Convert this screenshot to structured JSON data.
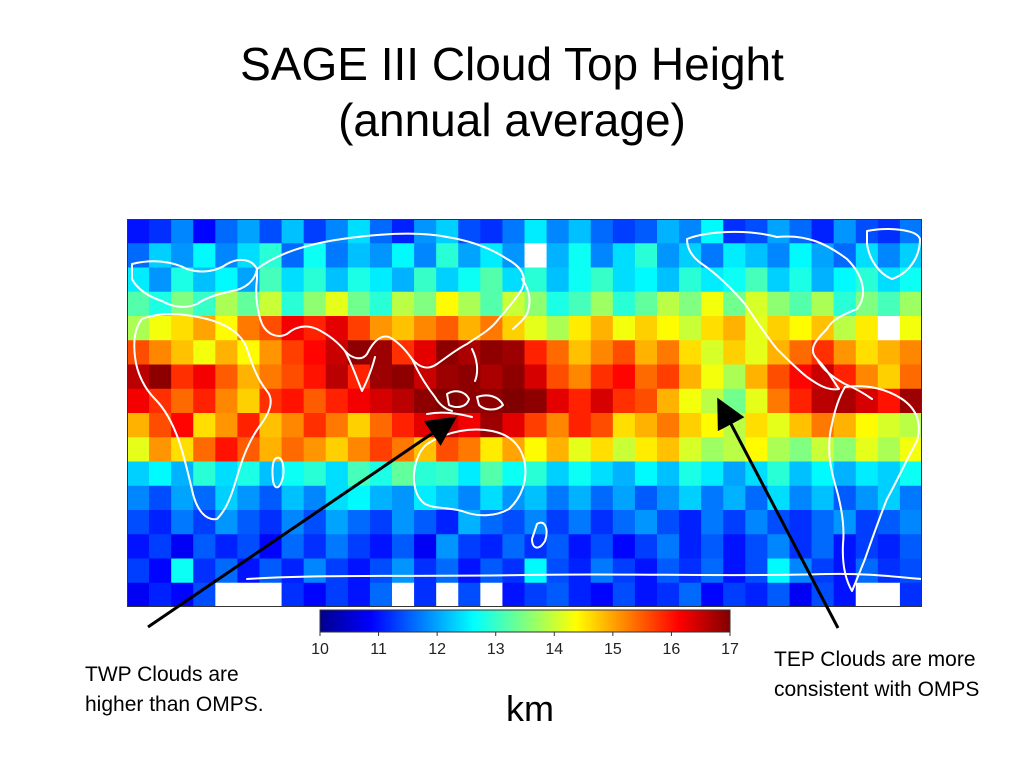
{
  "title": {
    "line1": "SAGE III Cloud Top Height",
    "line2": "(annual average)"
  },
  "chart_data": {
    "type": "heatmap",
    "title": "SAGE III Cloud Top Height (annual average)",
    "description_variable": "cloud top height",
    "units": "km",
    "colorbar": {
      "min": 10,
      "max": 17,
      "ticks": [
        "10",
        "11",
        "12",
        "13",
        "14",
        "15",
        "16",
        "17"
      ],
      "colormap": "jet",
      "label": "km"
    },
    "grid_cols": 36,
    "grid_rows": 16,
    "missing_value": null,
    "values": [
      [
        11.0,
        11.2,
        11.8,
        10.9,
        11.6,
        12.0,
        11.4,
        12.2,
        11.3,
        11.8,
        12.4,
        11.6,
        11.1,
        11.9,
        12.3,
        11.4,
        11.2,
        11.7,
        12.5,
        11.8,
        12.2,
        11.6,
        11.3,
        11.5,
        12.1,
        11.8,
        12.6,
        11.2,
        11.4,
        12.0,
        11.6,
        11.1,
        11.9,
        11.4,
        11.2,
        11.7
      ],
      [
        11.6,
        12.3,
        11.9,
        12.6,
        11.8,
        12.4,
        12.9,
        11.6,
        12.7,
        11.7,
        12.2,
        11.9,
        12.6,
        11.8,
        12.9,
        12.0,
        12.5,
        11.9,
        null,
        12.1,
        12.7,
        11.8,
        12.4,
        12.9,
        11.9,
        12.3,
        11.7,
        12.5,
        12.2,
        11.8,
        12.6,
        12.0,
        11.6,
        12.4,
        11.8,
        12.3
      ],
      [
        12.5,
        11.9,
        12.8,
        12.2,
        12.6,
        12.0,
        13.1,
        12.4,
        12.9,
        12.2,
        12.8,
        12.5,
        12.1,
        13.0,
        12.3,
        12.7,
        13.2,
        12.4,
        12.9,
        12.2,
        12.7,
        13.0,
        12.4,
        12.6,
        12.2,
        12.9,
        12.5,
        12.7,
        13.1,
        12.3,
        12.8,
        12.1,
        12.6,
        12.9,
        12.4,
        12.7
      ],
      [
        13.2,
        12.8,
        13.5,
        13.0,
        13.8,
        13.3,
        14.0,
        12.9,
        13.6,
        14.2,
        13.4,
        12.9,
        13.9,
        13.5,
        14.4,
        13.8,
        13.2,
        14.0,
        13.6,
        12.8,
        13.1,
        13.7,
        12.9,
        13.3,
        13.9,
        13.5,
        14.3,
        13.4,
        14.1,
        13.6,
        13.2,
        13.8,
        12.9,
        13.5,
        13.1,
        13.7
      ],
      [
        13.8,
        14.3,
        14.6,
        15.0,
        14.4,
        15.3,
        15.6,
        16.2,
        15.9,
        16.3,
        15.7,
        15.1,
        14.8,
        15.2,
        15.5,
        14.9,
        15.3,
        14.7,
        14.2,
        13.8,
        14.5,
        14.9,
        14.3,
        14.7,
        14.4,
        14.0,
        14.6,
        14.9,
        14.2,
        14.7,
        14.4,
        14.8,
        13.9,
        14.5,
        null,
        14.3
      ],
      [
        15.6,
        15.2,
        14.8,
        14.3,
        14.9,
        14.4,
        15.1,
        15.7,
        16.1,
        16.5,
        16.9,
        16.8,
        15.8,
        16.3,
        16.9,
        16.7,
        16.9,
        16.8,
        15.9,
        15.4,
        14.8,
        15.2,
        15.6,
        14.9,
        15.3,
        14.6,
        14.1,
        14.7,
        14.2,
        14.9,
        15.4,
        15.8,
        15.1,
        14.6,
        14.9,
        15.2
      ],
      [
        16.6,
        16.9,
        15.8,
        16.2,
        15.5,
        14.9,
        15.3,
        15.6,
        16.0,
        16.6,
        15.9,
        16.8,
        16.9,
        16.5,
        16.8,
        16.9,
        16.7,
        16.9,
        16.4,
        15.6,
        15.2,
        15.8,
        16.1,
        15.4,
        15.7,
        14.9,
        14.3,
        13.8,
        14.9,
        15.6,
        16.1,
        16.5,
        15.9,
        15.2,
        14.7,
        15.4
      ],
      [
        16.2,
        15.8,
        15.4,
        15.9,
        15.2,
        14.7,
        15.8,
        16.0,
        15.5,
        15.9,
        16.2,
        16.4,
        16.6,
        16.9,
        17.0,
        16.9,
        16.9,
        17.0,
        16.9,
        16.3,
        15.9,
        16.4,
        15.8,
        15.6,
        14.9,
        14.3,
        13.9,
        13.4,
        14.2,
        15.3,
        15.9,
        16.6,
        16.7,
        16.4,
        16.0,
        16.8
      ],
      [
        14.9,
        15.6,
        16.1,
        14.6,
        15.1,
        15.9,
        14.8,
        15.2,
        15.8,
        15.3,
        14.7,
        15.4,
        15.9,
        16.3,
        16.5,
        16.2,
        16.8,
        16.3,
        15.7,
        15.2,
        15.9,
        15.6,
        14.6,
        14.9,
        15.3,
        14.7,
        14.4,
        13.9,
        14.6,
        14.2,
        14.8,
        15.3,
        14.9,
        14.4,
        14.1,
        13.9
      ],
      [
        14.2,
        15.1,
        14.6,
        15.4,
        16.0,
        15.5,
        14.9,
        15.4,
        15.1,
        14.7,
        15.2,
        15.7,
        15.3,
        14.8,
        15.6,
        15.3,
        14.5,
        15.0,
        14.4,
        14.9,
        14.2,
        14.6,
        14.0,
        14.5,
        14.8,
        14.1,
        13.7,
        13.9,
        14.4,
        13.8,
        13.5,
        14.0,
        13.6,
        14.2,
        13.8,
        14.3
      ],
      [
        12.3,
        12.6,
        12.1,
        12.9,
        12.4,
        12.8,
        12.2,
        12.7,
        12.9,
        12.4,
        13.1,
        12.8,
        13.3,
        12.9,
        13.0,
        12.5,
        13.2,
        12.7,
        12.9,
        12.3,
        12.7,
        12.4,
        12.1,
        12.6,
        12.2,
        12.8,
        12.5,
        12.0,
        12.4,
        12.9,
        12.2,
        12.6,
        12.1,
        12.5,
        12.3,
        12.7
      ],
      [
        11.8,
        11.4,
        12.0,
        11.6,
        12.3,
        11.9,
        11.5,
        12.2,
        11.8,
        12.4,
        12.6,
        12.1,
        11.9,
        12.5,
        12.2,
        11.8,
        12.4,
        11.9,
        12.2,
        11.7,
        12.1,
        11.6,
        12.0,
        11.5,
        11.9,
        12.3,
        11.7,
        12.1,
        11.6,
        12.4,
        11.8,
        12.2,
        11.5,
        11.9,
        12.3,
        11.7
      ],
      [
        11.4,
        11.1,
        11.7,
        11.3,
        11.9,
        11.5,
        11.2,
        11.8,
        11.4,
        12.0,
        11.6,
        11.3,
        11.9,
        11.5,
        11.1,
        12.1,
        11.6,
        11.4,
        11.8,
        11.3,
        11.7,
        11.2,
        11.6,
        11.9,
        11.4,
        11.1,
        11.7,
        11.3,
        11.8,
        11.4,
        11.2,
        11.6,
        11.9,
        11.3,
        11.5,
        11.8
      ],
      [
        11.0,
        11.3,
        10.8,
        11.5,
        11.1,
        11.4,
        10.9,
        11.6,
        11.2,
        11.7,
        11.3,
        11.0,
        11.5,
        10.8,
        11.9,
        11.3,
        11.1,
        11.6,
        11.2,
        11.5,
        11.0,
        11.4,
        10.9,
        11.3,
        11.7,
        11.1,
        11.5,
        11.0,
        11.4,
        11.8,
        11.2,
        11.6,
        11.0,
        11.3,
        11.1,
        11.5
      ],
      [
        11.3,
        10.9,
        12.7,
        11.2,
        11.6,
        11.0,
        11.5,
        11.1,
        11.8,
        11.3,
        11.0,
        11.4,
        11.9,
        11.2,
        11.6,
        11.0,
        11.5,
        11.2,
        12.6,
        11.4,
        11.1,
        11.7,
        11.3,
        11.0,
        11.5,
        11.2,
        11.6,
        11.0,
        11.4,
        12.6,
        11.8,
        11.3,
        11.0,
        11.6,
        11.2,
        11.4
      ],
      [
        10.8,
        11.1,
        10.9,
        11.4,
        null,
        null,
        null,
        11.2,
        10.9,
        11.3,
        11.0,
        11.6,
        null,
        11.2,
        null,
        11.4,
        null,
        11.0,
        11.3,
        11.5,
        11.1,
        10.9,
        11.4,
        11.0,
        11.2,
        11.6,
        10.9,
        11.3,
        11.1,
        11.5,
        10.8,
        11.4,
        11.0,
        null,
        null,
        11.2
      ]
    ],
    "annotations": [
      {
        "text": "TWP Clouds are higher than OMPS.",
        "points_to": "Western Pacific warm pool"
      },
      {
        "text": "TEP Clouds are more consistent with OMPS",
        "points_to": "Tropical Eastern Pacific"
      }
    ]
  },
  "notes": {
    "left": "TWP Clouds are higher than OMPS.",
    "right": "TEP Clouds are more consistent with OMPS"
  },
  "unit_label": "km"
}
